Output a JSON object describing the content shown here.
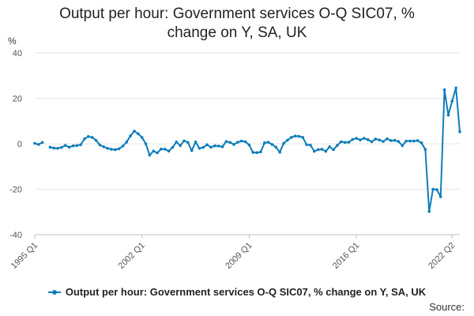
{
  "colors": {
    "series": "#0f7dbb",
    "grid": "#e6e6e6",
    "axis": "#c0c0c0",
    "text": "#555555"
  },
  "source_label": "Source:",
  "chart_data": {
    "type": "line",
    "title_lines": [
      "Output per hour: Government services O-Q SIC07, %",
      "change on Y, SA, UK"
    ],
    "ylabel": "%",
    "ylim": [
      -40,
      40
    ],
    "yticks": [
      40,
      20,
      0,
      -20,
      -40
    ],
    "xlim": [
      "1995 Q1",
      "2022 Q2"
    ],
    "xticks": [
      "1995 Q1",
      "2002 Q1",
      "2009 Q1",
      "2016 Q1",
      "2022 Q2"
    ],
    "legend_position": "bottom",
    "grid": "horizontal",
    "series": [
      {
        "name": "Output per hour: Government services O-Q SIC07, % change on Y, SA, UK",
        "points": [
          [
            "1995 Q1",
            0.2
          ],
          [
            "1995 Q2",
            -0.3
          ],
          [
            "1995 Q3",
            0.6
          ],
          [
            "1996 Q1",
            -1.5
          ],
          [
            "1996 Q2",
            -1.9
          ],
          [
            "1996 Q3",
            -2.0
          ],
          [
            "1996 Q4",
            -1.6
          ],
          [
            "1997 Q1",
            -0.7
          ],
          [
            "1997 Q2",
            -1.5
          ],
          [
            "1997 Q3",
            -0.9
          ],
          [
            "1997 Q4",
            -0.8
          ],
          [
            "1998 Q1",
            -0.4
          ],
          [
            "1998 Q2",
            2.2
          ],
          [
            "1998 Q3",
            3.2
          ],
          [
            "1998 Q4",
            2.8
          ],
          [
            "1999 Q1",
            1.5
          ],
          [
            "1999 Q2",
            -0.5
          ],
          [
            "1999 Q3",
            -1.3
          ],
          [
            "1999 Q4",
            -2.0
          ],
          [
            "2000 Q1",
            -2.4
          ],
          [
            "2000 Q2",
            -2.6
          ],
          [
            "2000 Q3",
            -2.2
          ],
          [
            "2000 Q4",
            -1.0
          ],
          [
            "2001 Q1",
            0.8
          ],
          [
            "2001 Q2",
            3.5
          ],
          [
            "2001 Q3",
            5.6
          ],
          [
            "2001 Q4",
            4.4
          ],
          [
            "2002 Q1",
            2.8
          ],
          [
            "2002 Q2",
            0.0
          ],
          [
            "2002 Q3",
            -5.0
          ],
          [
            "2002 Q4",
            -3.2
          ],
          [
            "2003 Q1",
            -4.0
          ],
          [
            "2003 Q2",
            -2.3
          ],
          [
            "2003 Q3",
            -2.4
          ],
          [
            "2003 Q4",
            -3.2
          ],
          [
            "2004 Q1",
            -1.6
          ],
          [
            "2004 Q2",
            0.8
          ],
          [
            "2004 Q3",
            -0.8
          ],
          [
            "2004 Q4",
            1.3
          ],
          [
            "2005 Q1",
            0.6
          ],
          [
            "2005 Q2",
            -3.0
          ],
          [
            "2005 Q3",
            0.8
          ],
          [
            "2005 Q4",
            -2.0
          ],
          [
            "2006 Q1",
            -1.6
          ],
          [
            "2006 Q2",
            -0.4
          ],
          [
            "2006 Q3",
            -1.5
          ],
          [
            "2006 Q4",
            -0.9
          ],
          [
            "2007 Q1",
            -1.0
          ],
          [
            "2007 Q2",
            -1.3
          ],
          [
            "2007 Q3",
            1.0
          ],
          [
            "2007 Q4",
            0.6
          ],
          [
            "2008 Q1",
            -0.3
          ],
          [
            "2008 Q2",
            0.7
          ],
          [
            "2008 Q3",
            1.2
          ],
          [
            "2008 Q4",
            0.9
          ],
          [
            "2009 Q1",
            -0.5
          ],
          [
            "2009 Q2",
            -3.8
          ],
          [
            "2009 Q3",
            -3.9
          ],
          [
            "2009 Q4",
            -3.6
          ],
          [
            "2010 Q1",
            0.4
          ],
          [
            "2010 Q2",
            0.7
          ],
          [
            "2010 Q3",
            -0.3
          ],
          [
            "2010 Q4",
            -1.5
          ],
          [
            "2011 Q1",
            -3.7
          ],
          [
            "2011 Q2",
            0.2
          ],
          [
            "2011 Q3",
            1.6
          ],
          [
            "2011 Q4",
            2.8
          ],
          [
            "2012 Q1",
            3.4
          ],
          [
            "2012 Q2",
            3.3
          ],
          [
            "2012 Q3",
            2.8
          ],
          [
            "2012 Q4",
            -0.4
          ],
          [
            "2013 Q1",
            -0.6
          ],
          [
            "2013 Q2",
            -3.3
          ],
          [
            "2013 Q3",
            -2.6
          ],
          [
            "2013 Q4",
            -2.4
          ],
          [
            "2014 Q1",
            -3.3
          ],
          [
            "2014 Q2",
            -1.3
          ],
          [
            "2014 Q3",
            -2.6
          ],
          [
            "2014 Q4",
            -0.7
          ],
          [
            "2015 Q1",
            0.9
          ],
          [
            "2015 Q2",
            0.6
          ],
          [
            "2015 Q3",
            0.7
          ],
          [
            "2015 Q4",
            1.9
          ],
          [
            "2016 Q1",
            2.4
          ],
          [
            "2016 Q2",
            1.7
          ],
          [
            "2016 Q3",
            2.4
          ],
          [
            "2016 Q4",
            1.8
          ],
          [
            "2017 Q1",
            0.9
          ],
          [
            "2017 Q2",
            2.1
          ],
          [
            "2017 Q3",
            1.7
          ],
          [
            "2017 Q4",
            1.0
          ],
          [
            "2018 Q1",
            2.2
          ],
          [
            "2018 Q2",
            1.4
          ],
          [
            "2018 Q3",
            1.5
          ],
          [
            "2018 Q4",
            1.0
          ],
          [
            "2019 Q1",
            -0.8
          ],
          [
            "2019 Q2",
            1.2
          ],
          [
            "2019 Q3",
            1.2
          ],
          [
            "2019 Q4",
            1.2
          ],
          [
            "2020 Q1",
            1.4
          ],
          [
            "2020 Q2",
            0.4
          ],
          [
            "2020 Q3",
            -2.5
          ],
          [
            "2020 Q4",
            -29.8
          ],
          [
            "2021 Q1",
            -20.0
          ],
          [
            "2021 Q2",
            -20.2
          ],
          [
            "2021 Q3",
            -23.3
          ],
          [
            "2021 Q4",
            23.8
          ],
          [
            "2022 Q1",
            12.6
          ],
          [
            "2022 Q2",
            18.8
          ],
          [
            "2022 Q3",
            24.6
          ],
          [
            "2022 Q4",
            5.3
          ]
        ]
      }
    ]
  }
}
